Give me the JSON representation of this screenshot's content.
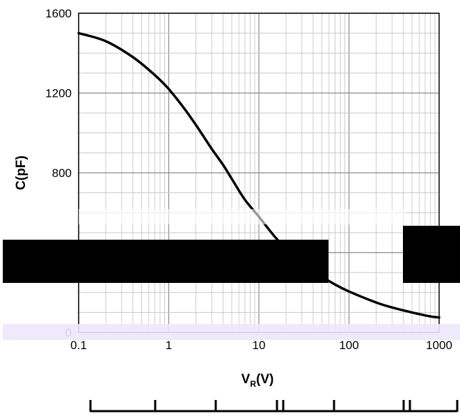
{
  "chart_data": {
    "type": "line",
    "title": "",
    "xlabel_main": "V",
    "xlabel_sub": "R",
    "xlabel_tail": "(V)",
    "ylabel": "C(pF)",
    "xscale": "log",
    "xlim": [
      0.1,
      1000
    ],
    "ylim": [
      0,
      1600
    ],
    "grid": true,
    "x_ticks": [
      0.1,
      1,
      10,
      100,
      1000
    ],
    "x_tick_labels": [
      "0.1",
      "1",
      "10",
      "100",
      "1000"
    ],
    "y_ticks": [
      0,
      400,
      800,
      1200,
      1600
    ],
    "y_tick_labels": [
      "0",
      "",
      "800",
      "1200",
      "1600"
    ],
    "series": [
      {
        "x": [
          0.1,
          0.2,
          0.4,
          0.7,
          1,
          1.5,
          2,
          3,
          4,
          5,
          7,
          10,
          15,
          20,
          30,
          50,
          70,
          100,
          200,
          300,
          500,
          800,
          1000
        ],
        "y": [
          1500,
          1460,
          1380,
          1290,
          1220,
          1120,
          1040,
          920,
          840,
          770,
          665,
          580,
          480,
          420,
          350,
          280,
          240,
          205,
          150,
          125,
          100,
          80,
          75
        ]
      }
    ]
  }
}
